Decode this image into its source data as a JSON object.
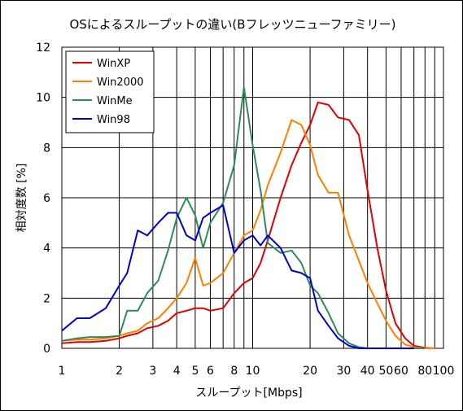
{
  "chart_data": {
    "type": "line",
    "title": "OSによるスループットの違い(Bフレッツニューファミリー)",
    "xlabel": "スループット[Mbps]",
    "ylabel": "相対度数 [%]",
    "x_scale": "log",
    "xlim": [
      1,
      100
    ],
    "ylim": [
      0,
      12
    ],
    "x_ticks": [
      1,
      2,
      3,
      4,
      5,
      6,
      8,
      10,
      20,
      30,
      40,
      50,
      60,
      80,
      100
    ],
    "x_tick_labels": [
      "1",
      "2",
      "3",
      "4",
      "5",
      "6",
      "8",
      "10",
      "20",
      "30",
      "40",
      "50",
      "60",
      "80",
      "100"
    ],
    "y_ticks": [
      0,
      2,
      4,
      6,
      8,
      10,
      12
    ],
    "grid": true,
    "legend_position": "top-left",
    "series": [
      {
        "name": "WinXP",
        "color": "#e00000",
        "x": [
          1,
          1.2,
          1.4,
          1.7,
          2,
          2.2,
          2.5,
          2.8,
          3.2,
          3.6,
          4,
          4.5,
          5,
          5.5,
          6,
          7,
          8,
          9,
          10,
          11,
          12,
          14,
          16,
          18,
          20,
          22,
          25,
          28,
          32,
          36,
          40,
          45,
          50,
          56,
          63,
          70,
          80,
          90
        ],
        "y": [
          0.2,
          0.25,
          0.25,
          0.3,
          0.4,
          0.5,
          0.6,
          0.8,
          0.9,
          1.1,
          1.4,
          1.5,
          1.6,
          1.6,
          1.5,
          1.6,
          2.2,
          2.6,
          2.8,
          3.4,
          4.3,
          6.0,
          7.3,
          8.2,
          8.9,
          9.8,
          9.7,
          9.2,
          9.1,
          8.5,
          6.3,
          4.0,
          2.3,
          1.0,
          0.4,
          0.1,
          0.02,
          0.0
        ]
      },
      {
        "name": "Win2000",
        "color": "#ff7f00",
        "x": [
          1,
          1.2,
          1.4,
          1.7,
          2,
          2.2,
          2.5,
          2.8,
          3.2,
          3.6,
          4,
          4.5,
          5,
          5.5,
          6,
          7,
          8,
          9,
          10,
          11,
          12,
          14,
          16,
          18,
          20,
          22,
          25,
          28,
          32,
          36,
          40,
          45,
          50,
          56,
          63,
          70,
          80,
          90
        ],
        "y": [
          0.3,
          0.35,
          0.35,
          0.4,
          0.5,
          0.6,
          0.7,
          1.0,
          1.2,
          1.6,
          2.0,
          2.6,
          3.6,
          2.5,
          2.6,
          3.0,
          3.8,
          4.5,
          4.7,
          5.5,
          6.5,
          7.8,
          9.1,
          8.9,
          8.1,
          6.9,
          6.2,
          6.2,
          4.5,
          3.5,
          2.6,
          1.8,
          1.1,
          0.5,
          0.15,
          0.05,
          0.0,
          0.0
        ]
      },
      {
        "name": "WinMe",
        "color": "#2e8b57",
        "x": [
          1,
          1.2,
          1.4,
          1.7,
          2,
          2.2,
          2.5,
          2.8,
          3.2,
          3.6,
          4,
          4.5,
          5,
          5.5,
          6,
          7,
          8,
          9,
          10,
          11,
          12,
          14,
          16,
          18,
          20,
          22,
          25,
          28,
          32,
          36,
          40,
          45,
          50,
          56,
          63,
          70,
          80
        ],
        "y": [
          0.3,
          0.4,
          0.45,
          0.45,
          0.5,
          1.5,
          1.5,
          2.2,
          2.7,
          3.9,
          5.2,
          6.0,
          5.3,
          4.0,
          5.0,
          5.8,
          7.3,
          10.4,
          8.1,
          6.3,
          4.2,
          3.8,
          3.9,
          3.4,
          2.5,
          2.2,
          1.4,
          0.6,
          0.2,
          0.05,
          0.0,
          0.0,
          0.0,
          0.0,
          0.0,
          0.0,
          0.0
        ]
      },
      {
        "name": "Win98",
        "color": "#0000cc",
        "x": [
          1,
          1.2,
          1.4,
          1.7,
          2,
          2.2,
          2.5,
          2.8,
          3.2,
          3.6,
          4,
          4.5,
          5,
          5.5,
          6,
          7,
          8,
          9,
          10,
          11,
          12,
          14,
          16,
          18,
          20,
          22,
          25,
          28,
          32,
          36,
          40,
          45,
          50,
          56,
          63,
          70
        ],
        "y": [
          0.7,
          1.2,
          1.2,
          1.6,
          2.5,
          3.0,
          4.7,
          4.5,
          5.0,
          5.4,
          5.4,
          4.5,
          4.3,
          5.2,
          5.4,
          5.7,
          3.8,
          4.3,
          4.5,
          4.1,
          4.5,
          4.0,
          3.1,
          3.0,
          2.8,
          1.5,
          0.9,
          0.4,
          0.1,
          0.0,
          0.0,
          0.0,
          0.0,
          0.0,
          0.0,
          0.0
        ]
      }
    ]
  }
}
